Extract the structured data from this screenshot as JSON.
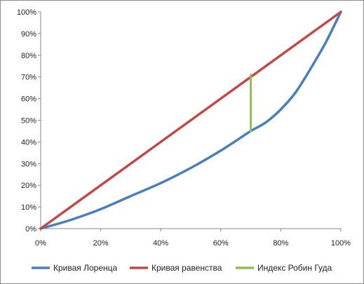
{
  "chart_data": {
    "type": "line",
    "title": "",
    "xlabel": "",
    "ylabel": "",
    "xlim": [
      0,
      100
    ],
    "ylim": [
      0,
      100
    ],
    "grid": false,
    "legend_position": "bottom",
    "x_ticks": [
      "0%",
      "20%",
      "40%",
      "60%",
      "80%",
      "100%"
    ],
    "y_ticks": [
      "0%",
      "10%",
      "20%",
      "30%",
      "40%",
      "50%",
      "60%",
      "70%",
      "80%",
      "90%",
      "100%"
    ],
    "series": [
      {
        "name": "Кривая Лоренца",
        "color": "#4a7ebb",
        "points": [
          [
            0,
            0
          ],
          [
            10,
            4
          ],
          [
            20,
            9
          ],
          [
            30,
            15
          ],
          [
            40,
            21
          ],
          [
            50,
            28
          ],
          [
            60,
            36
          ],
          [
            70,
            45
          ],
          [
            75,
            49
          ],
          [
            80,
            55
          ],
          [
            85,
            63
          ],
          [
            90,
            74
          ],
          [
            95,
            86
          ],
          [
            100,
            100
          ]
        ]
      },
      {
        "name": "Кривая равенства",
        "color": "#be4b48",
        "points": [
          [
            0,
            0
          ],
          [
            100,
            100
          ]
        ]
      },
      {
        "name": "Индекс Робин Гуда",
        "color": "#98b954",
        "points": [
          [
            70,
            45
          ],
          [
            70,
            71
          ]
        ]
      }
    ]
  }
}
